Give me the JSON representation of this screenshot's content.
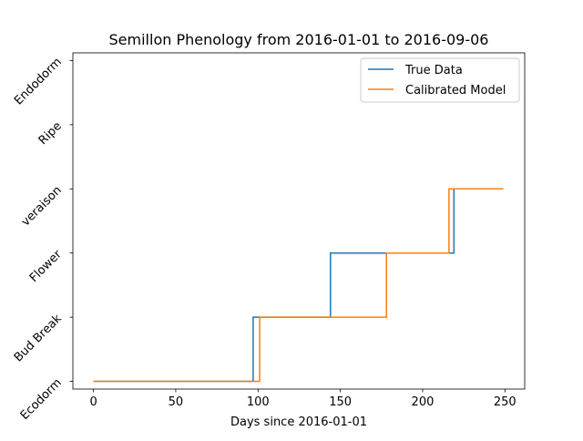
{
  "chart_data": {
    "type": "line",
    "title": "Semillon Phenology from 2016-01-01 to 2016-09-06",
    "xlabel": "Days since 2016-01-01",
    "ylabel": "",
    "xlim": [
      -12.5,
      262
    ],
    "ylim": [
      -0.12,
      5.12
    ],
    "x_ticks": [
      0,
      50,
      100,
      150,
      200,
      250
    ],
    "x_tick_labels": [
      "0",
      "50",
      "100",
      "150",
      "200",
      "250"
    ],
    "y_ticks": [
      0,
      1,
      2,
      3,
      4,
      5
    ],
    "y_tick_labels": [
      "Ecodorm",
      "Bud Break",
      "Flower",
      "veraison",
      "Ripe",
      "Endodorm"
    ],
    "grid": false,
    "legend_position": "top-right",
    "series": [
      {
        "name": "True Data",
        "color": "#1f77b4",
        "points": [
          [
            0,
            0
          ],
          [
            97,
            0
          ],
          [
            97,
            1
          ],
          [
            144,
            1
          ],
          [
            144,
            2
          ],
          [
            219,
            2
          ],
          [
            219,
            3
          ],
          [
            249,
            3
          ]
        ]
      },
      {
        "name": "Calibrated Model",
        "color": "#ff7f0e",
        "points": [
          [
            0,
            0
          ],
          [
            101,
            0
          ],
          [
            101,
            1
          ],
          [
            178,
            1
          ],
          [
            178,
            2
          ],
          [
            216,
            2
          ],
          [
            216,
            3
          ],
          [
            249,
            3
          ]
        ]
      }
    ]
  }
}
